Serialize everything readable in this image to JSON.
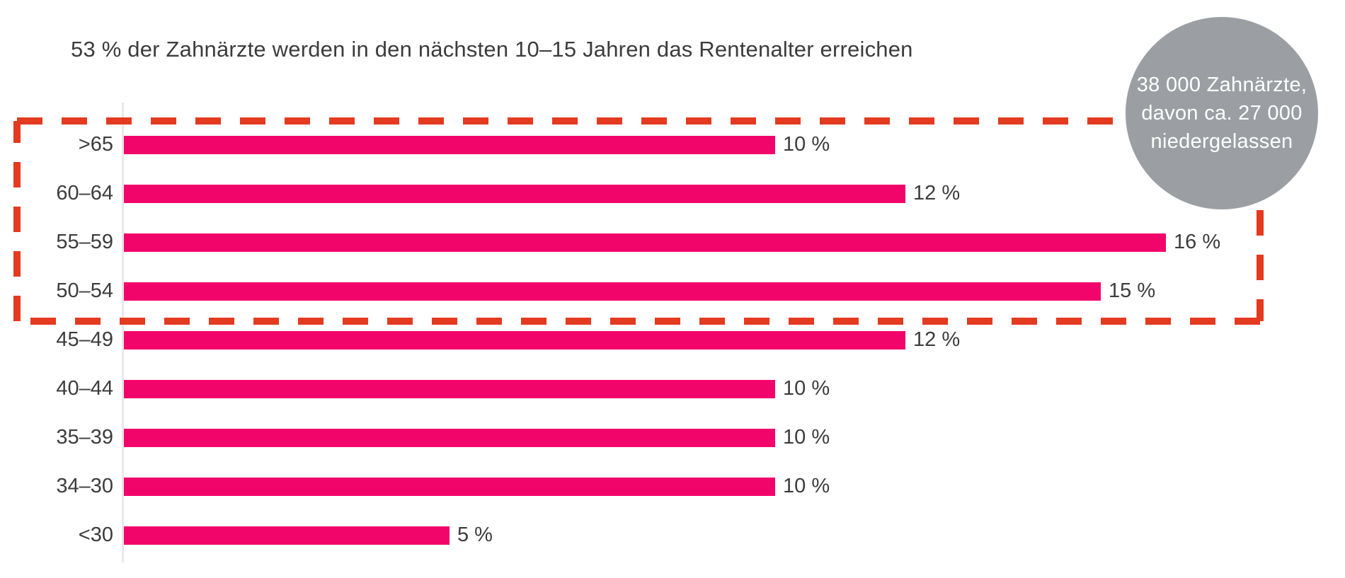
{
  "title": "53 % der Zahnärzte werden in den nächsten 10–15 Jahren das Rentenalter erreichen",
  "badge": {
    "lines": [
      "38 000 Zahnärzte,",
      "davon ca. 27 000",
      "niedergelassen"
    ]
  },
  "colors": {
    "bar": "#F2056B",
    "dash": "#E33A20",
    "badge_bg": "#9B9FA3",
    "text": "#3C3C3C",
    "axis_line": "#E8E8E8"
  },
  "chart_data": {
    "type": "bar",
    "orientation": "horizontal",
    "title": "53 % der Zahnärzte werden in den nächsten 10–15 Jahren das Rentenalter erreichen",
    "categories": [
      ">65",
      "60–64",
      "55–59",
      "50–54",
      "45–49",
      "40–44",
      "35–39",
      "34–30",
      "<30"
    ],
    "values": [
      10,
      12,
      16,
      15,
      12,
      10,
      10,
      10,
      5
    ],
    "value_labels": [
      "10 %",
      "12 %",
      "16 %",
      "15 %",
      "12 %",
      "10 %",
      "10 %",
      "10 %",
      "5 %"
    ],
    "unit": "%",
    "xlabel": "",
    "ylabel": "",
    "xlim": [
      0,
      16.5
    ],
    "grid": false,
    "legend": false,
    "annotation": "38 000 Zahnärzte, davon ca. 27 000 niedergelassen",
    "highlight": {
      "categories": [
        ">65",
        "60–64",
        "55–59",
        "50–54"
      ],
      "style": "red-dashed-box"
    }
  }
}
